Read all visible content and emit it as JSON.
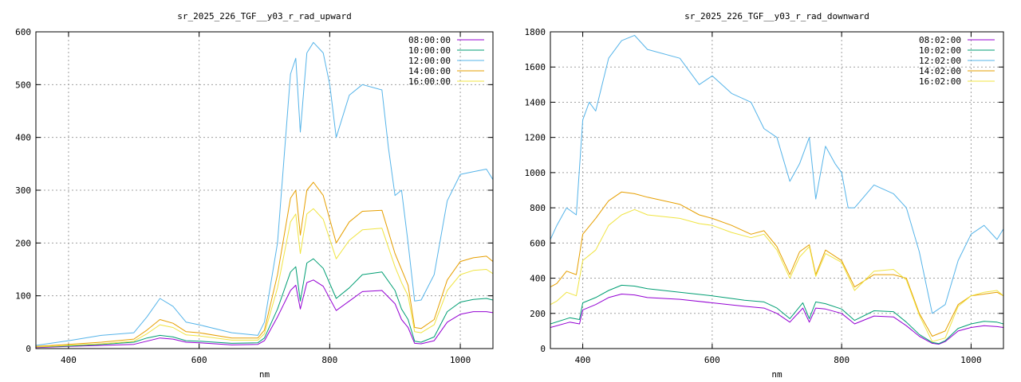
{
  "chart_data": [
    {
      "type": "line",
      "title": "sr_2025_226_TGF__y03_r_rad_upward",
      "xlabel": "nm",
      "ylabel": "",
      "xlim": [
        350,
        1050
      ],
      "ylim": [
        0,
        600
      ],
      "xticks": [
        400,
        600,
        800,
        1000
      ],
      "yticks": [
        0,
        100,
        200,
        300,
        400,
        500,
        600
      ],
      "grid": true,
      "legend_position": "top-right",
      "series": [
        {
          "name": "08:00:00",
          "color": "#9400d3",
          "x": [
            350,
            400,
            450,
            500,
            520,
            540,
            560,
            580,
            600,
            650,
            690,
            700,
            720,
            740,
            748,
            755,
            765,
            775,
            790,
            810,
            830,
            850,
            880,
            900,
            910,
            920,
            930,
            940,
            960,
            980,
            1000,
            1020,
            1040,
            1050
          ],
          "y": [
            2,
            4,
            6,
            8,
            14,
            20,
            18,
            12,
            11,
            7,
            8,
            15,
            60,
            110,
            120,
            75,
            125,
            130,
            118,
            72,
            90,
            108,
            110,
            85,
            55,
            40,
            10,
            9,
            15,
            50,
            65,
            70,
            70,
            68
          ]
        },
        {
          "name": "10:00:00",
          "color": "#009e73",
          "x": [
            350,
            400,
            450,
            500,
            520,
            540,
            560,
            580,
            600,
            650,
            690,
            700,
            720,
            740,
            748,
            755,
            765,
            775,
            790,
            810,
            830,
            850,
            880,
            900,
            910,
            920,
            930,
            940,
            960,
            980,
            1000,
            1020,
            1040,
            1050
          ],
          "y": [
            3,
            5,
            8,
            12,
            20,
            25,
            22,
            15,
            14,
            10,
            11,
            20,
            75,
            145,
            155,
            90,
            162,
            170,
            152,
            95,
            115,
            140,
            145,
            110,
            75,
            55,
            14,
            12,
            22,
            70,
            88,
            93,
            95,
            92
          ]
        },
        {
          "name": "12:00:00",
          "color": "#56b4e9",
          "x": [
            350,
            400,
            450,
            500,
            520,
            540,
            560,
            580,
            600,
            650,
            690,
            700,
            720,
            740,
            748,
            755,
            765,
            775,
            790,
            800,
            810,
            830,
            850,
            880,
            890,
            900,
            910,
            920,
            930,
            940,
            960,
            980,
            1000,
            1020,
            1040,
            1050
          ],
          "y": [
            6,
            15,
            25,
            30,
            60,
            95,
            80,
            50,
            45,
            30,
            25,
            50,
            200,
            520,
            550,
            410,
            560,
            580,
            560,
            500,
            400,
            480,
            500,
            490,
            380,
            290,
            300,
            200,
            90,
            92,
            140,
            280,
            330,
            335,
            340,
            320
          ]
        },
        {
          "name": "14:00:00",
          "color": "#e69f00",
          "x": [
            350,
            400,
            450,
            500,
            520,
            540,
            560,
            580,
            600,
            650,
            690,
            700,
            720,
            740,
            748,
            755,
            765,
            775,
            790,
            810,
            830,
            850,
            880,
            900,
            910,
            920,
            930,
            940,
            960,
            980,
            1000,
            1020,
            1040,
            1050
          ],
          "y": [
            4,
            8,
            12,
            18,
            35,
            55,
            48,
            32,
            30,
            20,
            20,
            35,
            140,
            285,
            300,
            215,
            300,
            315,
            290,
            200,
            240,
            260,
            262,
            180,
            150,
            120,
            40,
            38,
            55,
            130,
            165,
            172,
            175,
            165
          ]
        },
        {
          "name": "16:00:00",
          "color": "#f0e442",
          "x": [
            350,
            400,
            450,
            500,
            520,
            540,
            560,
            580,
            600,
            650,
            690,
            700,
            720,
            740,
            748,
            755,
            765,
            775,
            790,
            810,
            830,
            850,
            880,
            900,
            910,
            920,
            930,
            940,
            960,
            980,
            1000,
            1020,
            1040,
            1050
          ],
          "y": [
            3,
            6,
            9,
            14,
            28,
            45,
            40,
            26,
            24,
            16,
            16,
            28,
            115,
            240,
            255,
            180,
            255,
            265,
            245,
            170,
            205,
            225,
            228,
            155,
            125,
            100,
            32,
            30,
            45,
            110,
            140,
            148,
            150,
            142
          ]
        }
      ]
    },
    {
      "type": "line",
      "title": "sr_2025_226_TGF__y03_r_rad_downward",
      "xlabel": "nm",
      "ylabel": "",
      "xlim": [
        350,
        1050
      ],
      "ylim": [
        0,
        1800
      ],
      "xticks": [
        400,
        600,
        800,
        1000
      ],
      "yticks": [
        0,
        200,
        400,
        600,
        800,
        1000,
        1200,
        1400,
        1600,
        1800
      ],
      "grid": true,
      "legend_position": "top-right",
      "series": [
        {
          "name": "08:02:00",
          "color": "#9400d3",
          "x": [
            350,
            380,
            395,
            400,
            420,
            440,
            460,
            480,
            500,
            550,
            600,
            650,
            680,
            700,
            720,
            740,
            750,
            760,
            775,
            800,
            820,
            850,
            880,
            900,
            920,
            940,
            950,
            960,
            980,
            1000,
            1020,
            1040,
            1050
          ],
          "y": [
            120,
            150,
            140,
            220,
            250,
            290,
            310,
            305,
            290,
            280,
            260,
            240,
            230,
            200,
            150,
            230,
            150,
            230,
            225,
            200,
            140,
            185,
            180,
            130,
            70,
            30,
            25,
            40,
            100,
            120,
            130,
            125,
            120
          ]
        },
        {
          "name": "10:02:00",
          "color": "#009e73",
          "x": [
            350,
            380,
            395,
            400,
            420,
            440,
            460,
            480,
            500,
            550,
            600,
            650,
            680,
            700,
            720,
            740,
            750,
            760,
            775,
            800,
            820,
            850,
            880,
            900,
            920,
            940,
            950,
            960,
            980,
            1000,
            1020,
            1040,
            1050
          ],
          "y": [
            140,
            175,
            165,
            260,
            290,
            330,
            360,
            355,
            340,
            320,
            300,
            275,
            265,
            230,
            170,
            260,
            170,
            265,
            255,
            225,
            160,
            215,
            210,
            150,
            80,
            35,
            28,
            45,
            115,
            140,
            155,
            150,
            140
          ]
        },
        {
          "name": "12:02:00",
          "color": "#56b4e9",
          "x": [
            350,
            360,
            375,
            390,
            400,
            410,
            420,
            430,
            440,
            460,
            480,
            500,
            550,
            580,
            600,
            630,
            660,
            680,
            700,
            720,
            735,
            750,
            760,
            775,
            790,
            800,
            810,
            820,
            850,
            880,
            900,
            920,
            940,
            960,
            980,
            1000,
            1020,
            1040,
            1050
          ],
          "y": [
            620,
            700,
            800,
            760,
            1300,
            1400,
            1350,
            1500,
            1650,
            1750,
            1780,
            1700,
            1650,
            1500,
            1550,
            1450,
            1400,
            1250,
            1200,
            950,
            1050,
            1200,
            850,
            1150,
            1050,
            1000,
            800,
            800,
            930,
            880,
            800,
            550,
            200,
            250,
            500,
            650,
            700,
            620,
            680
          ]
        },
        {
          "name": "14:02:00",
          "color": "#e69f00",
          "x": [
            350,
            360,
            375,
            390,
            400,
            420,
            440,
            460,
            480,
            500,
            550,
            580,
            600,
            630,
            660,
            680,
            700,
            720,
            735,
            750,
            760,
            775,
            800,
            820,
            850,
            880,
            900,
            920,
            940,
            960,
            980,
            1000,
            1020,
            1040,
            1050
          ],
          "y": [
            350,
            370,
            440,
            420,
            650,
            740,
            840,
            890,
            880,
            860,
            820,
            760,
            740,
            700,
            650,
            670,
            580,
            420,
            550,
            590,
            420,
            560,
            500,
            350,
            420,
            420,
            400,
            200,
            70,
            100,
            250,
            300,
            310,
            320,
            300
          ]
        },
        {
          "name": "16:02:00",
          "color": "#f0e442",
          "x": [
            350,
            360,
            375,
            390,
            400,
            420,
            440,
            460,
            480,
            500,
            550,
            580,
            600,
            630,
            660,
            680,
            700,
            720,
            735,
            750,
            760,
            775,
            800,
            820,
            850,
            880,
            900,
            920,
            940,
            960,
            980,
            1000,
            1020,
            1040,
            1050
          ],
          "y": [
            250,
            270,
            320,
            300,
            500,
            560,
            700,
            760,
            790,
            760,
            740,
            710,
            700,
            660,
            630,
            650,
            560,
            400,
            520,
            580,
            410,
            540,
            490,
            330,
            440,
            450,
            390,
            190,
            40,
            60,
            240,
            300,
            320,
            330,
            300
          ]
        }
      ]
    }
  ]
}
